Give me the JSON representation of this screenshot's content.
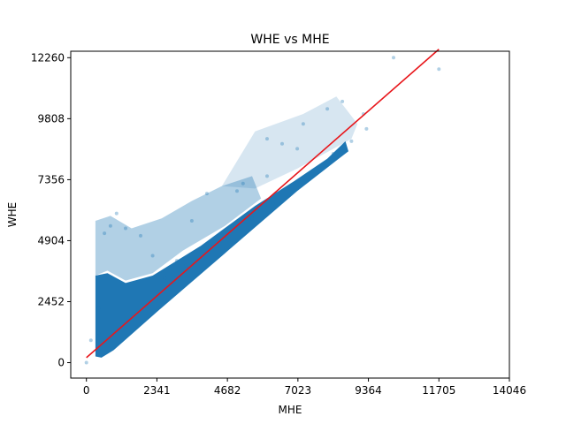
{
  "chart_data": {
    "type": "scatter",
    "title": "WHE vs MHE",
    "xlabel": "MHE",
    "ylabel": "WHE",
    "xlim": [
      -520,
      14046
    ],
    "ylim": [
      -620,
      12520
    ],
    "xticks": [
      0,
      2341,
      4682,
      7023,
      9364,
      11705,
      14046
    ],
    "yticks": [
      0,
      2452,
      4904,
      7356,
      9808,
      12260
    ],
    "xtick_labels": [
      "0",
      "2341",
      "4682",
      "7023",
      "9364",
      "11705",
      "14046"
    ],
    "ytick_labels": [
      "0",
      "2452",
      "4904",
      "7356",
      "9808",
      "12260"
    ],
    "grid": false,
    "legend": "none",
    "colors": {
      "points": "#1f77b4",
      "fit_line": "#e8161b"
    },
    "fit_line": {
      "x": [
        0,
        11705
      ],
      "y": [
        200,
        12600
      ]
    },
    "points": [
      [
        0,
        0
      ],
      [
        150,
        900
      ],
      [
        400,
        1200
      ],
      [
        400,
        2200
      ],
      [
        600,
        5200
      ],
      [
        800,
        5500
      ],
      [
        1000,
        6000
      ],
      [
        1300,
        5400
      ],
      [
        1800,
        5100
      ],
      [
        2200,
        4300
      ],
      [
        3000,
        4100
      ],
      [
        3500,
        5700
      ],
      [
        4000,
        6800
      ],
      [
        5000,
        6900
      ],
      [
        5200,
        7200
      ],
      [
        6000,
        7500
      ],
      [
        6500,
        8800
      ],
      [
        7000,
        8600
      ],
      [
        7200,
        9600
      ],
      [
        6000,
        9000
      ],
      [
        8000,
        10200
      ],
      [
        8500,
        10500
      ],
      [
        9200,
        10000
      ],
      [
        10200,
        12260
      ],
      [
        11705,
        11800
      ],
      [
        2600,
        3400
      ],
      [
        3300,
        3900
      ],
      [
        4100,
        4700
      ],
      [
        4500,
        5000
      ],
      [
        5500,
        5800
      ],
      [
        6200,
        6400
      ],
      [
        7500,
        7700
      ],
      [
        8200,
        8400
      ],
      [
        8800,
        8900
      ],
      [
        9300,
        9400
      ]
    ]
  }
}
